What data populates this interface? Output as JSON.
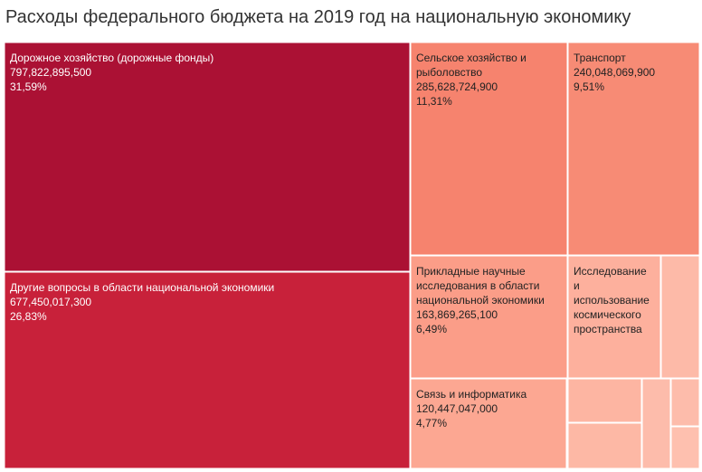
{
  "chart_data": {
    "type": "treemap",
    "title": "Расходы федерального бюджета на 2019 год на национальную экономику",
    "items": [
      {
        "name": "Дорожное хозяйство (дорожные фонды)",
        "value_text": "797,822,895,500",
        "value": 797822895500,
        "percent": "31,59%",
        "color": "#ab1134"
      },
      {
        "name": "Другие вопросы в области национальной экономики",
        "value_text": "677,450,017,300",
        "value": 677450017300,
        "percent": "26,83%",
        "color": "#c8213a"
      },
      {
        "name": "Сельское хозяйство и\nрыболовство",
        "value_text": "285,628,724,900",
        "value": 285628724900,
        "percent": "11,31%",
        "color": "#f6836e"
      },
      {
        "name": "Транспорт",
        "value_text": "240,048,069,900",
        "value": 240048069900,
        "percent": "9,51%",
        "color": "#f78b75"
      },
      {
        "name": "Прикладные научные\nисследования в области\nнациональной экономики",
        "value_text": "163,869,265,100",
        "value": 163869265100,
        "percent": "6,49%",
        "color": "#fb9d88"
      },
      {
        "name": "Связь и информатика",
        "value_text": "120,447,047,000",
        "value": 120447047000,
        "percent": "4,77%",
        "color": "#fca792"
      },
      {
        "name": "Исследование\nи\nиспользование\nкосмического\nпространства",
        "value_text": "",
        "value": null,
        "percent": "",
        "color": "#fdb09d"
      },
      {
        "name": "",
        "value_text": "",
        "value": null,
        "percent": "",
        "color": "#fdbaa8"
      },
      {
        "name": "",
        "value_text": "",
        "value": null,
        "percent": "",
        "color": "#fdb5a2"
      },
      {
        "name": "",
        "value_text": "",
        "value": null,
        "percent": "",
        "color": "#fdb8a5"
      },
      {
        "name": "",
        "value_text": "",
        "value": null,
        "percent": "",
        "color": "#fdbcab"
      },
      {
        "name": "",
        "value_text": "",
        "value": null,
        "percent": "",
        "color": "#fdbcab"
      },
      {
        "name": "",
        "value_text": "",
        "value": null,
        "percent": "",
        "color": "#fec0af"
      }
    ]
  }
}
